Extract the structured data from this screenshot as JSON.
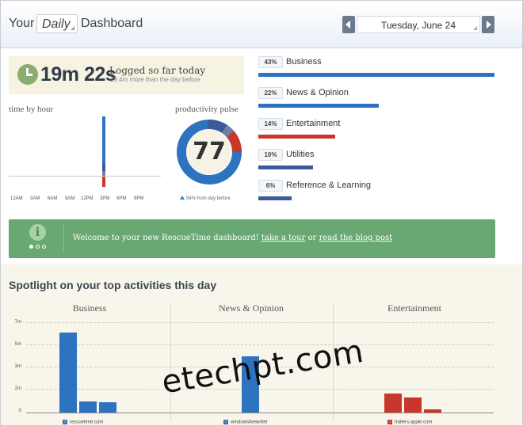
{
  "header": {
    "prefix": "Your",
    "period": "Daily",
    "suffix": "Dashboard",
    "date": "Tuesday, June 24"
  },
  "logged": {
    "time": "19m 22s",
    "label": "Logged so far today",
    "sub": "19.4m more than the day before"
  },
  "time_by_hour": {
    "label": "time by hour",
    "ticks": [
      "12AM",
      "3AM",
      "6AM",
      "9AM",
      "12PM",
      "3PM",
      "6PM",
      "9PM"
    ]
  },
  "pulse": {
    "label": "productivity pulse",
    "value": "77",
    "delta": "54% from day before"
  },
  "categories": [
    {
      "pct": "43%",
      "name": "Business",
      "fraction": 0.43,
      "color": "#2e73bf"
    },
    {
      "pct": "22%",
      "name": "News & Opinion",
      "fraction": 0.22,
      "color": "#2e73bf"
    },
    {
      "pct": "14%",
      "name": "Entertainment",
      "fraction": 0.14,
      "color": "#c9372c"
    },
    {
      "pct": "10%",
      "name": "Utilities",
      "fraction": 0.1,
      "color": "#3a5a9a"
    },
    {
      "pct": "6%",
      "name": "Reference & Learning",
      "fraction": 0.06,
      "color": "#3a5a9a"
    }
  ],
  "welcome": {
    "icon": "i",
    "text": "Welcome to your new RescueTime dashboard!",
    "tour_link": "take a tour",
    "or": "or",
    "blog_link": "read the blog post"
  },
  "spotlight": {
    "title": "Spotlight on your top activities this day",
    "columns": [
      "Business",
      "News & Opinion",
      "Entertainment"
    ],
    "sites": [
      "rescuetime.com",
      "windowslivewriter",
      "trailers.apple.com"
    ]
  },
  "chart_data": {
    "type": "bar",
    "title": "Spotlight on your top activities this day",
    "y_ticks": [
      "0",
      "2m",
      "3m",
      "5m",
      "7m"
    ],
    "ylim": [
      0,
      8
    ],
    "groups": [
      {
        "name": "Business",
        "values": [
          7.1,
          1.0,
          0.9
        ],
        "color": "#2e73bf"
      },
      {
        "name": "News & Opinion",
        "values": [
          5.0
        ],
        "color": "#2e73bf"
      },
      {
        "name": "Entertainment",
        "values": [
          1.7,
          1.3,
          0.3
        ],
        "color": "#c9372c"
      }
    ]
  },
  "watermark": "etechpt.com"
}
